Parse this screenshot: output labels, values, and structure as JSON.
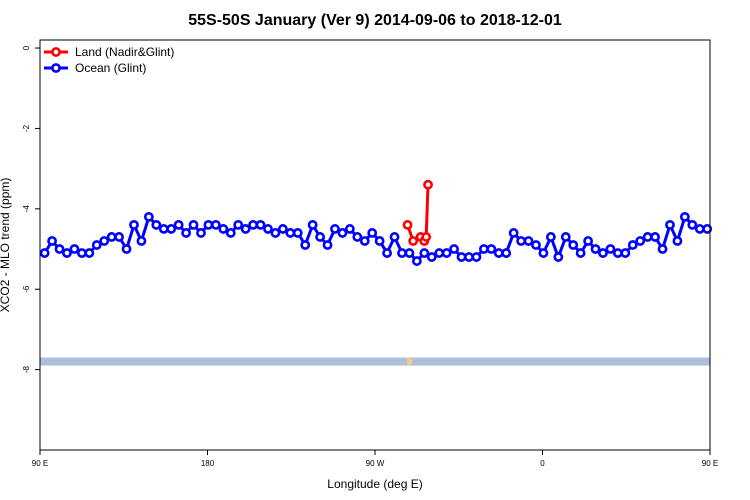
{
  "chart_data": {
    "type": "line",
    "title": "55S-50S January (Ver 9)   2014-09-06 to 2018-12-01",
    "xlabel": "Longitude (deg E)",
    "ylabel": "XCO2 - MLO trend (ppm)",
    "xlim": [
      90,
      450
    ],
    "ylim": [
      -10,
      0.2
    ],
    "x_ticks": [
      {
        "value": 90,
        "label": "90 E"
      },
      {
        "value": 180,
        "label": "180"
      },
      {
        "value": 270,
        "label": "90 W"
      },
      {
        "value": 360,
        "label": "0"
      },
      {
        "value": 450,
        "label": "90 E"
      },
      {
        "value": 540,
        "label": "180"
      }
    ],
    "y_ticks": [
      {
        "value": 0,
        "label": "0"
      },
      {
        "value": -2,
        "label": "-2"
      },
      {
        "value": -4,
        "label": "-4"
      },
      {
        "value": -6,
        "label": "-6"
      },
      {
        "value": -8,
        "label": "-8"
      }
    ],
    "grid": false,
    "legend_position": "top-left",
    "series": [
      {
        "name": "Land (Nadir&Glint)",
        "color": "#ff0000",
        "points": [
          [
            287.5,
            -4.4
          ],
          [
            290.5,
            -4.8
          ],
          [
            294.5,
            -4.7
          ],
          [
            296.5,
            -4.8
          ],
          [
            297.5,
            -4.7
          ],
          [
            298.5,
            -3.4
          ]
        ]
      },
      {
        "name": "Ocean (Glint)",
        "color": "#0000ff",
        "points": [
          [
            92.5,
            -5.1
          ],
          [
            96.5,
            -4.8
          ],
          [
            100.5,
            -5.0
          ],
          [
            104.5,
            -5.1
          ],
          [
            108.5,
            -5.0
          ],
          [
            112.5,
            -5.1
          ],
          [
            116.5,
            -5.1
          ],
          [
            120.5,
            -4.9
          ],
          [
            124.5,
            -4.8
          ],
          [
            128.5,
            -4.7
          ],
          [
            132.5,
            -4.7
          ],
          [
            136.5,
            -5.0
          ],
          [
            140.5,
            -4.4
          ],
          [
            144.5,
            -4.8
          ],
          [
            148.5,
            -4.2
          ],
          [
            152.5,
            -4.4
          ],
          [
            156.5,
            -4.5
          ],
          [
            160.5,
            -4.5
          ],
          [
            164.5,
            -4.4
          ],
          [
            168.5,
            -4.6
          ],
          [
            172.5,
            -4.4
          ],
          [
            176.5,
            -4.6
          ],
          [
            180.5,
            -4.4
          ],
          [
            184.5,
            -4.4
          ],
          [
            188.5,
            -4.5
          ],
          [
            192.5,
            -4.6
          ],
          [
            196.5,
            -4.4
          ],
          [
            200.5,
            -4.5
          ],
          [
            204.5,
            -4.4
          ],
          [
            208.5,
            -4.4
          ],
          [
            212.5,
            -4.5
          ],
          [
            216.5,
            -4.6
          ],
          [
            220.5,
            -4.5
          ],
          [
            224.5,
            -4.6
          ],
          [
            228.5,
            -4.6
          ],
          [
            232.5,
            -4.9
          ],
          [
            236.5,
            -4.4
          ],
          [
            240.5,
            -4.7
          ],
          [
            244.5,
            -4.9
          ],
          [
            248.5,
            -4.5
          ],
          [
            252.5,
            -4.6
          ],
          [
            256.5,
            -4.5
          ],
          [
            260.5,
            -4.7
          ],
          [
            264.5,
            -4.8
          ],
          [
            268.5,
            -4.6
          ],
          [
            272.5,
            -4.8
          ],
          [
            276.5,
            -5.1
          ],
          [
            280.5,
            -4.7
          ],
          [
            284.5,
            -5.1
          ],
          [
            288.5,
            -5.1
          ],
          [
            292.5,
            -5.3
          ],
          [
            296.5,
            -5.1
          ],
          [
            300.5,
            -5.2
          ],
          [
            304.5,
            -5.1
          ],
          [
            308.5,
            -5.1
          ],
          [
            312.5,
            -5.0
          ],
          [
            316.5,
            -5.2
          ],
          [
            320.5,
            -5.2
          ],
          [
            324.5,
            -5.2
          ],
          [
            328.5,
            -5.0
          ],
          [
            332.5,
            -5.0
          ],
          [
            336.5,
            -5.1
          ],
          [
            340.5,
            -5.1
          ],
          [
            344.5,
            -4.6
          ],
          [
            348.5,
            -4.8
          ],
          [
            352.5,
            -4.8
          ],
          [
            356.5,
            -4.9
          ],
          [
            360.5,
            -5.1
          ],
          [
            364.5,
            -4.7
          ],
          [
            368.5,
            -5.2
          ],
          [
            372.5,
            -4.7
          ],
          [
            376.5,
            -4.9
          ],
          [
            380.5,
            -5.1
          ],
          [
            384.5,
            -4.8
          ],
          [
            388.5,
            -5.0
          ],
          [
            392.5,
            -5.1
          ],
          [
            396.5,
            -5.0
          ],
          [
            400.5,
            -5.1
          ],
          [
            404.5,
            -5.1
          ],
          [
            408.5,
            -4.9
          ],
          [
            412.5,
            -4.8
          ],
          [
            416.5,
            -4.7
          ],
          [
            420.5,
            -4.7
          ],
          [
            424.5,
            -5.0
          ],
          [
            428.5,
            -4.4
          ],
          [
            432.5,
            -4.8
          ],
          [
            436.5,
            -4.2
          ],
          [
            440.5,
            -4.4
          ],
          [
            444.5,
            -4.5
          ],
          [
            448.5,
            -4.5
          ]
        ]
      }
    ],
    "coastline_band": {
      "y_range": [
        -7.9,
        -7.7
      ],
      "color": "#aec0d9",
      "land_color": "#f6cf7b"
    }
  }
}
